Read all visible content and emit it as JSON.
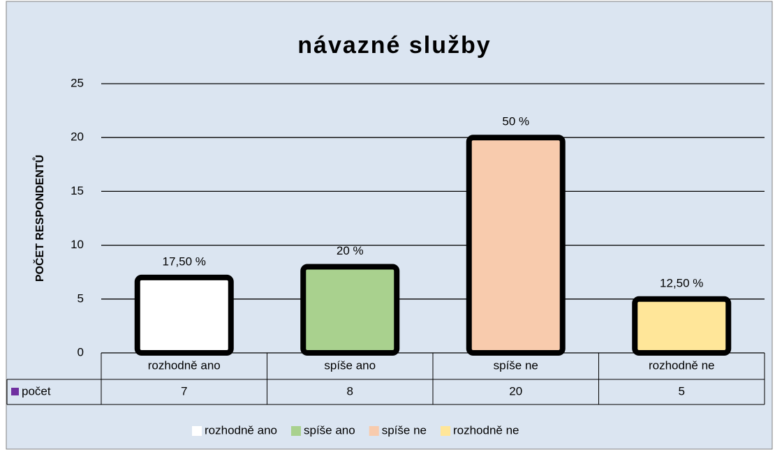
{
  "chart_data": {
    "type": "bar",
    "title": "návazné služby",
    "y_label": "POČET RESPONDENTŮ",
    "categories": [
      "rozhodně ano",
      "spíše ano",
      "spíše ne",
      "rozhodně ne"
    ],
    "colors": [
      "#ffffff",
      "#a9d18e",
      "#f8cbad",
      "#ffe699"
    ],
    "series": [
      {
        "name": "počet",
        "color": "#7030a0",
        "values": [
          7,
          8,
          20,
          5
        ]
      }
    ],
    "percent_labels": [
      "17,50 %",
      "20 %",
      "50 %",
      "12,50 %"
    ],
    "ylim": [
      0,
      25
    ],
    "yticks": [
      0,
      5,
      10,
      15,
      20,
      25
    ],
    "grid": true
  }
}
